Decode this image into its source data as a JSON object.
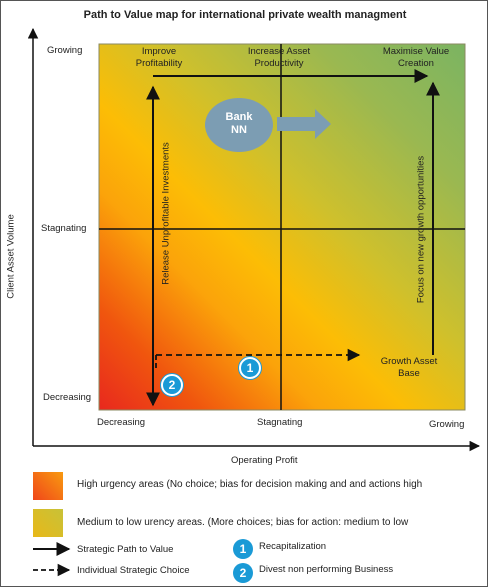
{
  "title": "Path to Value map for international private wealth managment",
  "y_axis": {
    "label": "Client Asset Volume",
    "ticks": [
      "Growing",
      "Stagnating",
      "Decreasing"
    ]
  },
  "x_axis": {
    "label": "Operating Profit",
    "ticks": [
      "Decreasing",
      "Stagnating",
      "Growing"
    ]
  },
  "top_labels": {
    "improve": "Improve\nProfitability",
    "increase": "Increase Asset\nProductivity",
    "maximise": "Maximise Value\nCreation"
  },
  "bank": {
    "label": "Bank\nNN"
  },
  "vertical_left": "Release Unprofitable Investments",
  "vertical_right": "Focus on new growth opportunities",
  "growth_asset": "Growth Asset\nBase",
  "markers": {
    "m1": "1",
    "m2": "2"
  },
  "legend": {
    "high": "High urgency areas (No choice; bias for decision making and and actions high",
    "medium": "Medium to low urency areas. (More choices; bias for action: medium to low",
    "strategic_path": "Strategic Path to Value",
    "individual_choice": "Individual Strategic Choice",
    "item1_num": "1",
    "item1": "Recapitalization",
    "item2_num": "2",
    "item2": "Divest non performing Business"
  },
  "colors": {
    "high_urgency": "#f56a0a",
    "medium_urgency": "#d9c02a",
    "bank_fill": "#7c9db3",
    "marker_blue": "#1a9ad6"
  }
}
